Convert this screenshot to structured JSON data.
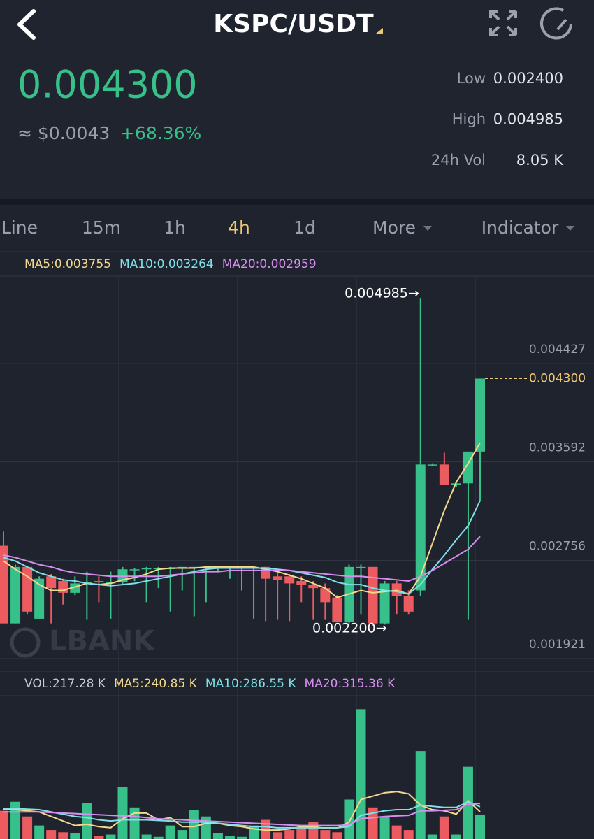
{
  "header": {
    "pair": "KSPC/USDT",
    "price": "0.004300",
    "usd_price": "≈ $0.0043",
    "change": "+68.36%",
    "stats": [
      {
        "label": "Low",
        "value": "0.002400"
      },
      {
        "label": "High",
        "value": "0.004985"
      },
      {
        "label": "24h Vol",
        "value": "8.05 K"
      }
    ]
  },
  "tabs": [
    {
      "label": "Line"
    },
    {
      "label": "15m"
    },
    {
      "label": "1h"
    },
    {
      "label": "4h",
      "active": true
    },
    {
      "label": "1d"
    },
    {
      "label": "More",
      "dropdown": true
    },
    {
      "label": "Indicator",
      "dropdown": true
    }
  ],
  "chart_data": {
    "type": "candlestick",
    "legend": [
      "MA5:0.003755",
      "MA10:0.003264",
      "MA20:0.002959"
    ],
    "watermark": "LBANK",
    "annotations": {
      "high": "0.004985→",
      "low": "0.002200→"
    },
    "up_color": "#37c08a",
    "down_color": "#ec5b5f",
    "ylim": [
      0.001814,
      0.00517
    ],
    "yticks": [
      0.004427,
      0.003592,
      0.002756,
      0.001921
    ],
    "grid": true,
    "open": [
      0.00288,
      0.00222,
      0.0027,
      0.00226,
      0.00262,
      0.00258,
      0.00248,
      0.00256,
      0.00258,
      0.00256,
      0.00257,
      0.00268,
      0.00268,
      0.00269,
      0.00269,
      0.00269,
      0.0027,
      0.0027,
      0.0027,
      0.0027,
      0.0027,
      0.0027,
      0.0027,
      0.00262,
      0.00262,
      0.00258,
      0.00255,
      0.00252,
      0.00244,
      0.00223,
      0.0027,
      0.0027,
      0.00222,
      0.00256,
      0.00245,
      0.0025,
      0.00357,
      0.00357,
      0.0034,
      0.00341,
      0.00368
    ],
    "high": [
      0.003,
      0.00272,
      0.00271,
      0.00262,
      0.00264,
      0.0026,
      0.00262,
      0.00266,
      0.00262,
      0.00266,
      0.0027,
      0.00269,
      0.0027,
      0.0027,
      0.0027,
      0.0027,
      0.0027,
      0.0027,
      0.0027,
      0.0027,
      0.0027,
      0.0027,
      0.0027,
      0.00266,
      0.00264,
      0.00262,
      0.00258,
      0.00256,
      0.00246,
      0.00272,
      0.00272,
      0.0027,
      0.00258,
      0.00258,
      0.0025,
      0.004985,
      0.00358,
      0.00367,
      0.00342,
      0.00368,
      0.0043
    ],
    "low": [
      0.00222,
      0.00222,
      0.0023,
      0.00226,
      0.00222,
      0.00238,
      0.00246,
      0.00225,
      0.0024,
      0.00226,
      0.00255,
      0.00258,
      0.0024,
      0.00252,
      0.00232,
      0.0025,
      0.00228,
      0.0024,
      0.00266,
      0.0026,
      0.0025,
      0.00226,
      0.00224,
      0.00225,
      0.00224,
      0.0024,
      0.00225,
      0.00225,
      0.00223,
      0.00222,
      0.0023,
      0.0022,
      0.00221,
      0.0023,
      0.0023,
      0.00245,
      0.00356,
      0.0034,
      0.00338,
      0.00225,
      0.00326
    ],
    "close": [
      0.00222,
      0.0027,
      0.00232,
      0.0026,
      0.00252,
      0.00248,
      0.00256,
      0.00257,
      0.00257,
      0.00257,
      0.00268,
      0.00268,
      0.00269,
      0.00269,
      0.00269,
      0.0027,
      0.0027,
      0.0027,
      0.0027,
      0.0027,
      0.0027,
      0.0027,
      0.0026,
      0.00259,
      0.00256,
      0.00255,
      0.00252,
      0.0024,
      0.00223,
      0.0027,
      0.0027,
      0.00222,
      0.00256,
      0.00245,
      0.00232,
      0.00357,
      0.00357,
      0.0034,
      0.00341,
      0.00368,
      0.0043
    ],
    "series": [
      {
        "name": "MA5",
        "color": "#f3d98c",
        "values": [
          0.00275,
          0.00268,
          0.00262,
          0.00255,
          0.0025,
          0.0025,
          0.00253,
          0.00256,
          0.00255,
          0.00256,
          0.00259,
          0.00261,
          0.00264,
          0.00268,
          0.00269,
          0.00269,
          0.00269,
          0.0027,
          0.0027,
          0.0027,
          0.0027,
          0.0027,
          0.00268,
          0.00266,
          0.00263,
          0.0026,
          0.00256,
          0.00252,
          0.00244,
          0.00247,
          0.0025,
          0.00248,
          0.00249,
          0.0025,
          0.00247,
          0.00262,
          0.0029,
          0.00318,
          0.00342,
          0.00358,
          0.003755
        ]
      },
      {
        "name": "MA10",
        "color": "#7fe0e8",
        "values": [
          0.00278,
          0.00275,
          0.0027,
          0.00265,
          0.00262,
          0.00259,
          0.00258,
          0.00256,
          0.00255,
          0.00254,
          0.00255,
          0.00256,
          0.00258,
          0.0026,
          0.00262,
          0.00264,
          0.00266,
          0.00268,
          0.00269,
          0.00269,
          0.00269,
          0.00269,
          0.00269,
          0.00268,
          0.00267,
          0.00265,
          0.00263,
          0.00261,
          0.00257,
          0.00255,
          0.00255,
          0.00252,
          0.0025,
          0.00249,
          0.00247,
          0.00255,
          0.00268,
          0.0028,
          0.00293,
          0.00305,
          0.003264
        ]
      },
      {
        "name": "MA20",
        "color": "#d88ef0",
        "values": [
          0.0028,
          0.00278,
          0.00275,
          0.00272,
          0.0027,
          0.00267,
          0.00265,
          0.00264,
          0.00263,
          0.00262,
          0.00262,
          0.00262,
          0.00262,
          0.00262,
          0.00263,
          0.00264,
          0.00265,
          0.00266,
          0.00266,
          0.00267,
          0.00267,
          0.00267,
          0.00267,
          0.00267,
          0.00267,
          0.00266,
          0.00265,
          0.00264,
          0.00263,
          0.00262,
          0.00262,
          0.00261,
          0.0026,
          0.00259,
          0.00258,
          0.00262,
          0.00267,
          0.00273,
          0.00279,
          0.00285,
          0.002959
        ]
      }
    ]
  },
  "volume_data": {
    "type": "bar",
    "legend": [
      "VOL:217.28 K",
      "MA5:240.85 K",
      "MA10:286.55 K",
      "MA20:315.36 K"
    ],
    "ylim": [
      0,
      1270
    ],
    "values": [
      250,
      330,
      200,
      120,
      80,
      60,
      50,
      320,
      30,
      40,
      460,
      280,
      40,
      20,
      120,
      80,
      260,
      200,
      50,
      30,
      20,
      120,
      170,
      60,
      80,
      100,
      150,
      80,
      60,
      350,
      1150,
      280,
      200,
      120,
      80,
      780,
      40,
      200,
      40,
      640,
      217.28
    ],
    "series": [
      {
        "name": "MA5",
        "color": "#f3d98c",
        "values": [
          260,
          260,
          250,
          240,
          200,
          160,
          120,
          130,
          110,
          100,
          180,
          230,
          230,
          170,
          190,
          110,
          110,
          140,
          140,
          120,
          110,
          90,
          80,
          80,
          90,
          110,
          110,
          95,
          95,
          150,
          350,
          380,
          410,
          420,
          400,
          300,
          260,
          250,
          220,
          340,
          240.85
        ]
      },
      {
        "name": "MA10",
        "color": "#7fe0e8",
        "values": [
          270,
          270,
          265,
          260,
          240,
          220,
          200,
          190,
          170,
          160,
          170,
          170,
          170,
          165,
          160,
          150,
          150,
          150,
          140,
          130,
          120,
          110,
          110,
          100,
          100,
          100,
          100,
          100,
          100,
          110,
          210,
          230,
          250,
          260,
          260,
          300,
          290,
          280,
          280,
          330,
          286.55
        ]
      },
      {
        "name": "MA20",
        "color": "#d88ef0",
        "values": [
          240,
          240,
          240,
          240,
          235,
          230,
          225,
          220,
          215,
          210,
          205,
          200,
          190,
          180,
          175,
          170,
          165,
          160,
          155,
          150,
          145,
          140,
          135,
          130,
          125,
          120,
          120,
          120,
          120,
          125,
          180,
          190,
          200,
          205,
          210,
          250,
          250,
          255,
          260,
          310,
          315.36
        ]
      }
    ]
  }
}
